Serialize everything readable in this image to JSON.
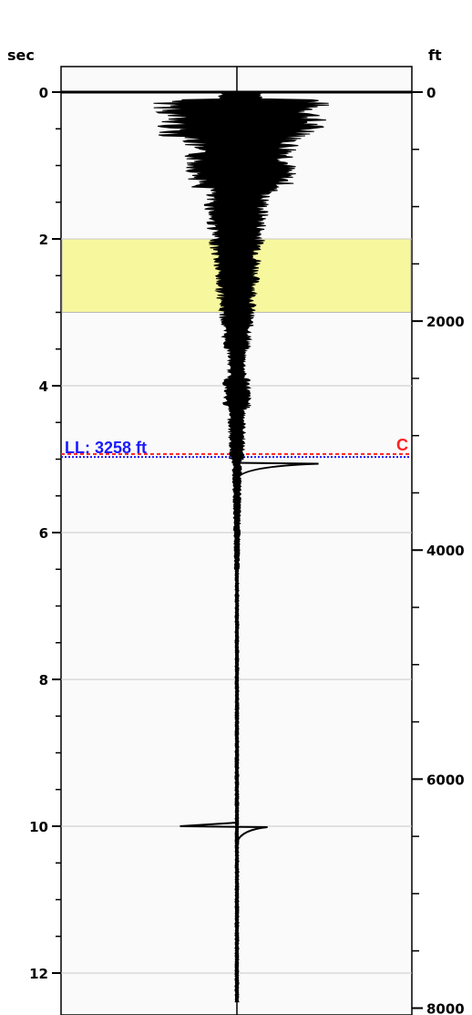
{
  "chart_data": {
    "type": "line",
    "left_axis": {
      "unit": "sec",
      "ticks": [
        0,
        2,
        4,
        6,
        8,
        10,
        12
      ],
      "range": [
        0,
        12.4
      ]
    },
    "right_axis": {
      "unit": "ft",
      "ticks": [
        0,
        2000,
        4000,
        6000,
        8000
      ],
      "range": [
        0,
        8060
      ]
    },
    "highlight_band": {
      "from_sec": 2.0,
      "to_sec": 3.0,
      "color": "#f7f79e"
    },
    "markers": [
      {
        "label": "LL: 3258 ft",
        "sec": 4.97,
        "color": "#1a1aff",
        "style": "dotted"
      },
      {
        "label": "C",
        "sec": 4.93,
        "color": "#ff2020",
        "style": "dashed"
      }
    ],
    "events": [
      {
        "sec": 0.0,
        "peak_left": -2.6,
        "peak_right": 2.6
      },
      {
        "sec": 5.05,
        "peak_left": 0,
        "peak_right": 1.12
      },
      {
        "sec": 10.0,
        "peak_left": -0.88,
        "peak_right": 0.42
      }
    ],
    "grid": true
  }
}
